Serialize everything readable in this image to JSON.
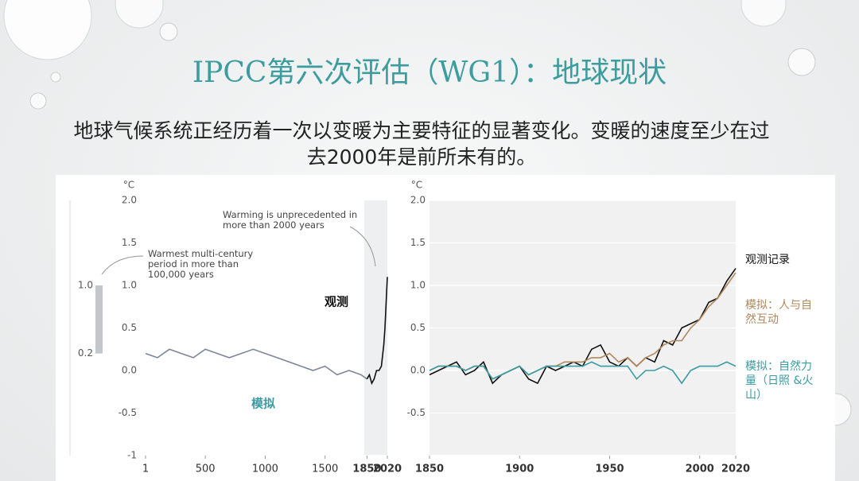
{
  "title": "IPCC第六次评估（WG1）：地球现状",
  "description": "地球气候系统正经历着一次以变暖为主要特征的显著变化。变暖的速度至少在过去2000年是前所未有的。",
  "chart_data": [
    {
      "type": "line",
      "ylabel": "°C",
      "xlim": [
        1,
        2020
      ],
      "xticks": [
        1,
        500,
        1000,
        1500,
        1850,
        2020
      ],
      "ylim": [
        -1,
        2
      ],
      "yticks": [
        -1,
        -0.5,
        {
          "value": 0,
          "label": "0.0"
        },
        0.5,
        {
          "value": 1,
          "label": "1.0"
        },
        1.5,
        {
          "value": 2,
          "label": "2.0"
        }
      ],
      "grid": false,
      "series": [
        {
          "name": "模拟",
          "color": "#7d8797",
          "x": [
            1,
            100,
            200,
            300,
            400,
            500,
            600,
            700,
            800,
            900,
            1000,
            1100,
            1200,
            1300,
            1400,
            1500,
            1600,
            1700,
            1800,
            1850
          ],
          "values": [
            0.2,
            0.15,
            0.25,
            0.2,
            0.15,
            0.25,
            0.2,
            0.15,
            0.2,
            0.25,
            0.2,
            0.15,
            0.1,
            0.05,
            0.0,
            0.05,
            -0.05,
            0.0,
            -0.05,
            -0.1
          ]
        },
        {
          "name": "观测",
          "color": "#111111",
          "x": [
            1850,
            1870,
            1890,
            1910,
            1930,
            1950,
            1970,
            1990,
            2000,
            2010,
            2020
          ],
          "values": [
            -0.1,
            -0.05,
            -0.15,
            -0.1,
            0.0,
            0.0,
            0.05,
            0.3,
            0.5,
            0.8,
            1.1
          ]
        }
      ],
      "warmest_period_range": {
        "values": [
          0.2,
          1.0
        ],
        "value_labels": [
          "0.2",
          "1.0"
        ]
      },
      "annotations": [
        "Warming is unprecedented in more than 2000 years",
        "Warmest multi-century period in more than 100,000 years"
      ]
    },
    {
      "type": "line",
      "ylabel": "°C",
      "xlim": [
        1850,
        2020
      ],
      "xticks": [
        1850,
        1900,
        1950,
        2000,
        2020
      ],
      "ylim": [
        -1,
        2
      ],
      "yticks": [
        -0.5,
        {
          "value": 0,
          "label": "0.0"
        },
        0.5,
        {
          "value": 1,
          "label": "1.0"
        },
        1.5,
        {
          "value": 2,
          "label": "2.0"
        }
      ],
      "grid": true,
      "legend": "right",
      "x": [
        1850,
        1855,
        1860,
        1865,
        1870,
        1875,
        1880,
        1885,
        1890,
        1895,
        1900,
        1905,
        1910,
        1915,
        1920,
        1925,
        1930,
        1935,
        1940,
        1945,
        1950,
        1955,
        1960,
        1965,
        1970,
        1975,
        1980,
        1985,
        1990,
        1995,
        2000,
        2005,
        2010,
        2015,
        2020
      ],
      "series": [
        {
          "name": "观测记录",
          "color": "#111111",
          "values": [
            -0.05,
            0.0,
            0.05,
            0.1,
            -0.05,
            0.0,
            0.1,
            -0.15,
            -0.05,
            0.0,
            0.05,
            -0.1,
            -0.15,
            0.05,
            0.0,
            0.05,
            0.1,
            0.05,
            0.25,
            0.3,
            0.1,
            0.05,
            0.15,
            0.05,
            0.15,
            0.1,
            0.35,
            0.3,
            0.5,
            0.55,
            0.6,
            0.8,
            0.85,
            1.05,
            1.2
          ]
        },
        {
          "name": "模拟：人与自然互动",
          "color": "#b0895c",
          "values": [
            0.0,
            0.05,
            0.05,
            0.05,
            0.0,
            0.05,
            0.05,
            -0.1,
            -0.05,
            0.0,
            0.05,
            -0.05,
            0.0,
            0.05,
            0.05,
            0.1,
            0.1,
            0.1,
            0.15,
            0.15,
            0.2,
            0.1,
            0.15,
            0.05,
            0.15,
            0.2,
            0.3,
            0.35,
            0.35,
            0.5,
            0.6,
            0.75,
            0.85,
            1.0,
            1.15
          ]
        },
        {
          "name": "模拟：自然力量（日照 &火山）",
          "color": "#3a9ca3",
          "values": [
            0.0,
            0.05,
            0.05,
            0.05,
            0.0,
            0.05,
            0.05,
            -0.1,
            -0.05,
            0.0,
            0.05,
            -0.05,
            0.0,
            0.05,
            0.05,
            0.05,
            0.05,
            0.05,
            0.1,
            0.05,
            0.05,
            0.05,
            0.05,
            -0.1,
            0.0,
            0.0,
            0.05,
            0.0,
            -0.15,
            0.0,
            0.05,
            0.05,
            0.05,
            0.1,
            0.05
          ]
        }
      ]
    }
  ]
}
